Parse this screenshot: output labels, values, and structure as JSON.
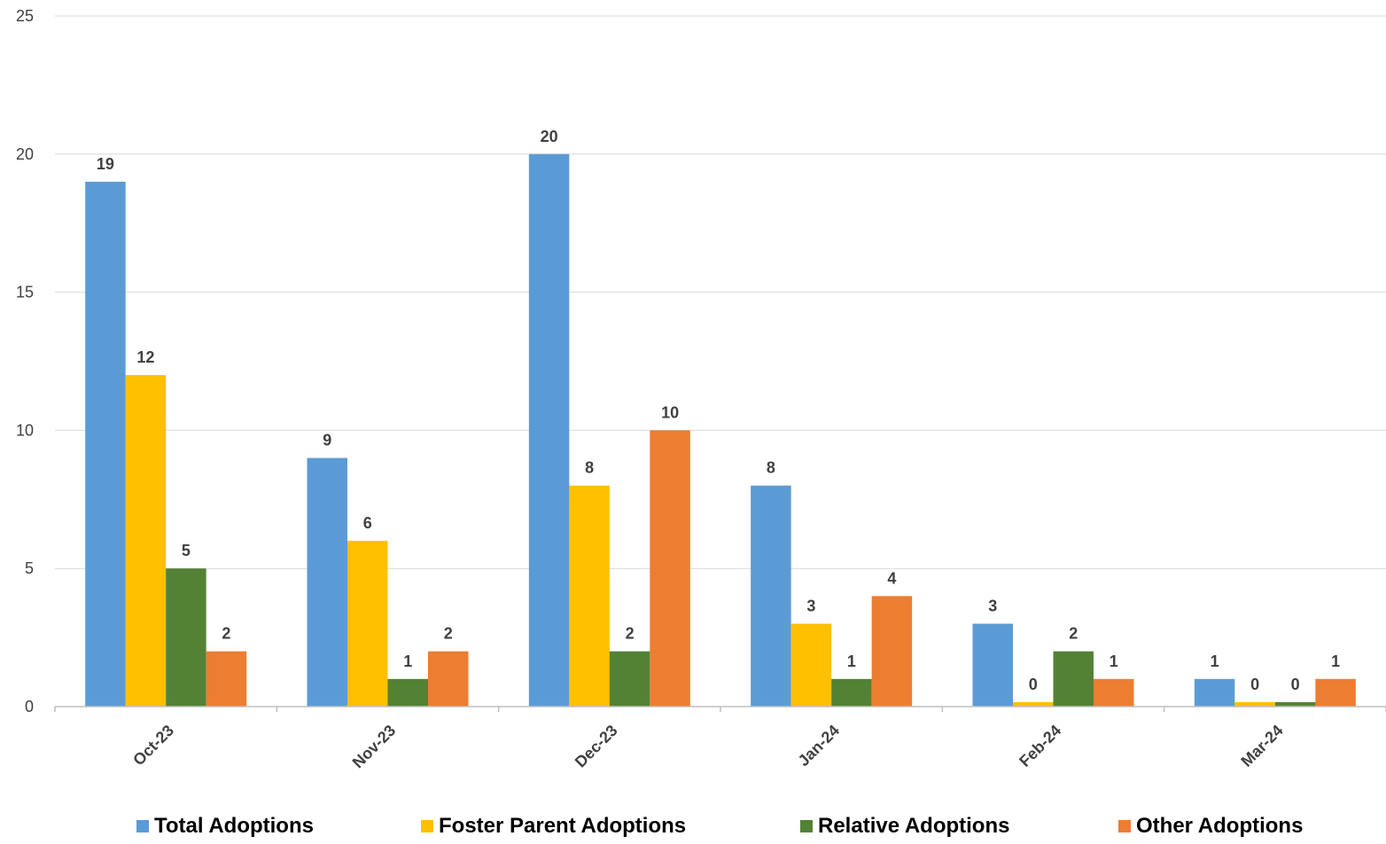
{
  "chart_data": {
    "type": "bar",
    "categories": [
      "Oct-23",
      "Nov-23",
      "Dec-23",
      "Jan-24",
      "Feb-24",
      "Mar-24"
    ],
    "series": [
      {
        "name": "Total Adoptions",
        "color": "#5B9BD5",
        "values": [
          19,
          9,
          20,
          8,
          3,
          1
        ]
      },
      {
        "name": "Foster Parent Adoptions",
        "color": "#FFC000",
        "values": [
          12,
          6,
          8,
          3,
          0,
          0
        ]
      },
      {
        "name": "Relative Adoptions",
        "color": "#548235",
        "values": [
          5,
          1,
          2,
          1,
          2,
          0
        ]
      },
      {
        "name": "Other Adoptions",
        "color": "#ED7D31",
        "values": [
          2,
          2,
          10,
          4,
          1,
          1
        ]
      }
    ],
    "ylim": [
      0,
      25
    ],
    "yticks": [
      0,
      5,
      10,
      15,
      20,
      25
    ],
    "grid": true,
    "legend_position": "bottom",
    "data_labels": true
  }
}
